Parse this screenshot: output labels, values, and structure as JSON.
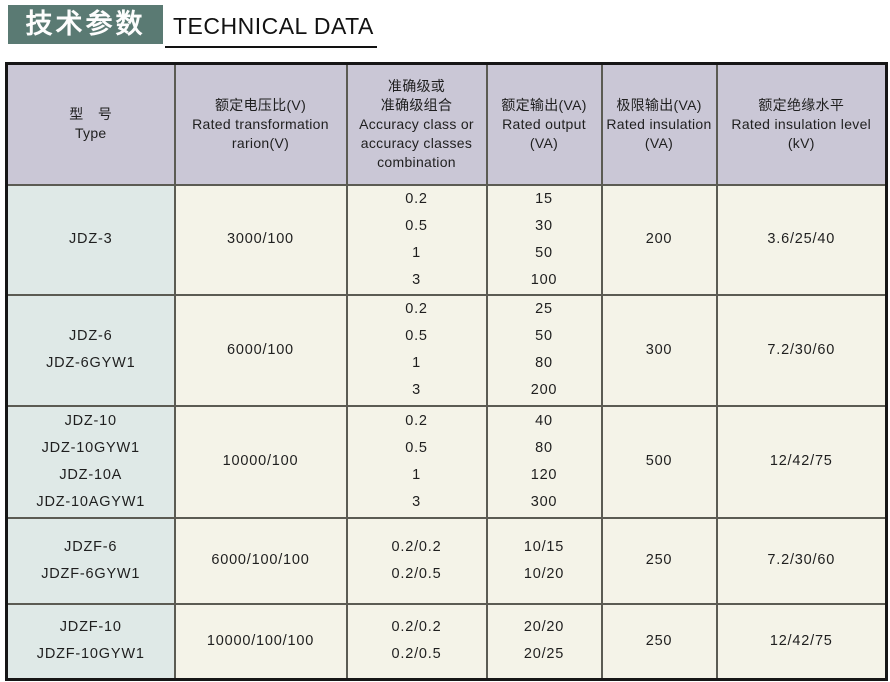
{
  "header": {
    "title_zh": "技术参数",
    "title_en": "TECHNICAL DATA"
  },
  "colors": {
    "title_block_bg": "#5a7a73",
    "table_header_bg": "#cac7d6",
    "type_column_bg": "#dfe9e7",
    "data_cell_bg": "#f4f3e8",
    "inner_border": "#5b5b53",
    "outer_border": "#161616"
  },
  "table": {
    "headers": [
      [
        "型　号",
        "Type"
      ],
      [
        "额定电压比(V)",
        "Rated transformation",
        "rarion(V)"
      ],
      [
        "准确级或",
        "准确级组合",
        "Accuracy class or",
        "accuracy classes",
        "combination"
      ],
      [
        "额定输出(VA)",
        "Rated output",
        "(VA)"
      ],
      [
        "极限输出(VA)",
        "Rated insulation",
        "(VA)"
      ],
      [
        "额定绝缘水平",
        "Rated insulation level",
        "(kV)"
      ]
    ],
    "rows": [
      {
        "type": [
          "JDZ-3"
        ],
        "ratio": [
          "3000/100"
        ],
        "accuracy": [
          "0.2",
          "0.5",
          "1",
          "3"
        ],
        "output": [
          "15",
          "30",
          "50",
          "100"
        ],
        "limit": [
          "200"
        ],
        "insulation": [
          "3.6/25/40"
        ]
      },
      {
        "type": [
          "JDZ-6",
          "JDZ-6GYW1"
        ],
        "ratio": [
          "6000/100"
        ],
        "accuracy": [
          "0.2",
          "0.5",
          "1",
          "3"
        ],
        "output": [
          "25",
          "50",
          "80",
          "200"
        ],
        "limit": [
          "300"
        ],
        "insulation": [
          "7.2/30/60"
        ]
      },
      {
        "type": [
          "JDZ-10",
          "JDZ-10GYW1",
          "JDZ-10A",
          "JDZ-10AGYW1"
        ],
        "ratio": [
          "10000/100"
        ],
        "accuracy": [
          "0.2",
          "0.5",
          "1",
          "3"
        ],
        "output": [
          "40",
          "80",
          "120",
          "300"
        ],
        "limit": [
          "500"
        ],
        "insulation": [
          "12/42/75"
        ]
      },
      {
        "type": [
          "JDZF-6",
          "JDZF-6GYW1"
        ],
        "ratio": [
          "6000/100/100"
        ],
        "accuracy": [
          "0.2/0.2",
          "0.2/0.5"
        ],
        "output": [
          "10/15",
          "10/20"
        ],
        "limit": [
          "250"
        ],
        "insulation": [
          "7.2/30/60"
        ]
      },
      {
        "type": [
          "JDZF-10",
          "JDZF-10GYW1"
        ],
        "ratio": [
          "10000/100/100"
        ],
        "accuracy": [
          "0.2/0.2",
          "0.2/0.5"
        ],
        "output": [
          "20/20",
          "20/25"
        ],
        "limit": [
          "250"
        ],
        "insulation": [
          "12/42/75"
        ]
      }
    ]
  }
}
